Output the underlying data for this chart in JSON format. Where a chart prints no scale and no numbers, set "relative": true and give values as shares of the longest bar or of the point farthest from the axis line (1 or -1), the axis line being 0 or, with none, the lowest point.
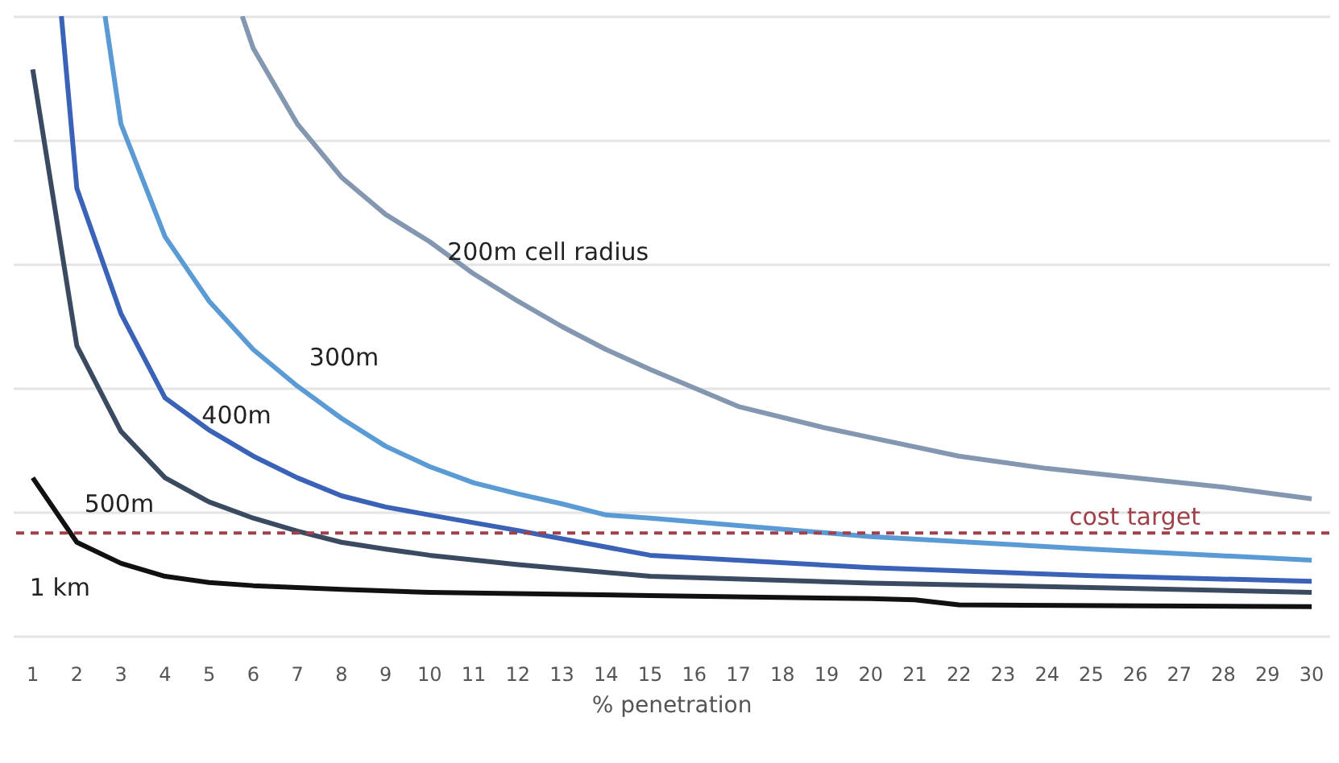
{
  "chart_data": {
    "type": "line",
    "relative": true,
    "xlabel": "% penetration",
    "xlim": [
      0.55,
      30.4
    ],
    "xticks": [
      1,
      2,
      3,
      4,
      5,
      6,
      7,
      8,
      9,
      10,
      11,
      12,
      13,
      14,
      15,
      16,
      17,
      18,
      19,
      20,
      21,
      22,
      23,
      24,
      25,
      26,
      27,
      28,
      29,
      30
    ],
    "grid": "y",
    "marker": "none",
    "line_style": "solid",
    "series": [
      {
        "name": "1 km",
        "color": "#111111",
        "x": [
          1,
          2,
          3,
          4,
          5,
          6,
          8,
          10,
          15,
          20,
          21,
          22,
          30
        ],
        "values": [
          0.255,
          0.151,
          0.117,
          0.096,
          0.086,
          0.081,
          0.075,
          0.07,
          0.065,
          0.06,
          0.058,
          0.05,
          0.047
        ]
      },
      {
        "name": "500m",
        "color": "#3a4a60",
        "x": [
          1,
          2,
          3,
          4,
          5,
          6,
          7,
          8,
          9,
          10,
          12,
          15,
          20,
          25,
          30
        ],
        "values": [
          0.914,
          0.468,
          0.33,
          0.255,
          0.216,
          0.19,
          0.169,
          0.151,
          0.14,
          0.13,
          0.115,
          0.096,
          0.085,
          0.078,
          0.07
        ]
      },
      {
        "name": "400m",
        "color": "#3a63b8",
        "x": [
          1.65,
          2,
          3,
          4,
          5,
          6,
          7,
          8,
          9,
          10,
          12,
          15,
          20,
          25,
          30
        ],
        "values": [
          1,
          0.722,
          0.52,
          0.384,
          0.332,
          0.29,
          0.255,
          0.226,
          0.208,
          0.195,
          0.17,
          0.13,
          0.11,
          0.097,
          0.088
        ]
      },
      {
        "name": "300m",
        "color": "#5b9bd5",
        "x": [
          2.64,
          3,
          4,
          5,
          6,
          7,
          8,
          9,
          10,
          11,
          12,
          13,
          14,
          15,
          20,
          25,
          30
        ],
        "values": [
          1,
          0.826,
          0.644,
          0.54,
          0.462,
          0.403,
          0.351,
          0.306,
          0.273,
          0.247,
          0.229,
          0.213,
          0.195,
          0.19,
          0.16,
          0.14,
          0.122
        ]
      },
      {
        "name": "200m cell radius",
        "color": "#8497b0",
        "x": [
          5.75,
          6,
          7,
          8,
          9,
          10,
          11,
          12,
          13,
          14,
          15,
          17,
          19,
          20,
          22,
          24,
          26,
          28,
          30
        ],
        "values": [
          1,
          0.948,
          0.826,
          0.74,
          0.68,
          0.636,
          0.584,
          0.54,
          0.499,
          0.462,
          0.43,
          0.37,
          0.335,
          0.32,
          0.29,
          0.27,
          0.255,
          0.24,
          0.221
        ]
      }
    ],
    "ref_lines": [
      {
        "axis": "y",
        "value": 0.166,
        "label": "cost target",
        "color": "#a0404a",
        "line_style": "dashed"
      }
    ]
  }
}
